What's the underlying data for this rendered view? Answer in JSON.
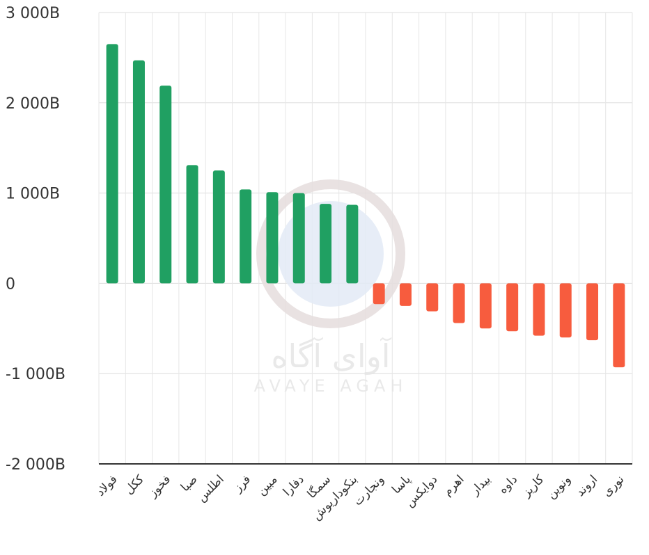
{
  "chart_data": {
    "type": "bar",
    "title": "",
    "xlabel": "",
    "ylabel": "",
    "ylim": [
      -2000,
      3000
    ],
    "y_ticks": [
      "3 000B",
      "2 000B",
      "1 000B",
      "0",
      "-1 000B",
      "-2 000B"
    ],
    "y_tick_values": [
      3000,
      2000,
      1000,
      0,
      -1000,
      -2000
    ],
    "grid": true,
    "categories": [
      "فولاد",
      "ککل",
      "فخوز",
      "صبا",
      "اطلس",
      "فرز",
      "مبین",
      "دفارا",
      "سمگا",
      "بنکوداریوش",
      "ونجارت",
      "پاسا",
      "دوایکس",
      "اهرم",
      "بیدار",
      "داوه",
      "کاریز",
      "ونوین",
      "اروند",
      "نوری"
    ],
    "values": [
      2650,
      2470,
      2190,
      1310,
      1250,
      1040,
      1010,
      1000,
      880,
      870,
      -230,
      -250,
      -310,
      -440,
      -500,
      -530,
      -580,
      -600,
      -630,
      -930
    ],
    "colors": {
      "positive": "#20a062",
      "negative": "#f75c3e"
    }
  },
  "watermark": {
    "text_fa": "آوای آگاه",
    "text_en": "AVAYE AGAH"
  }
}
